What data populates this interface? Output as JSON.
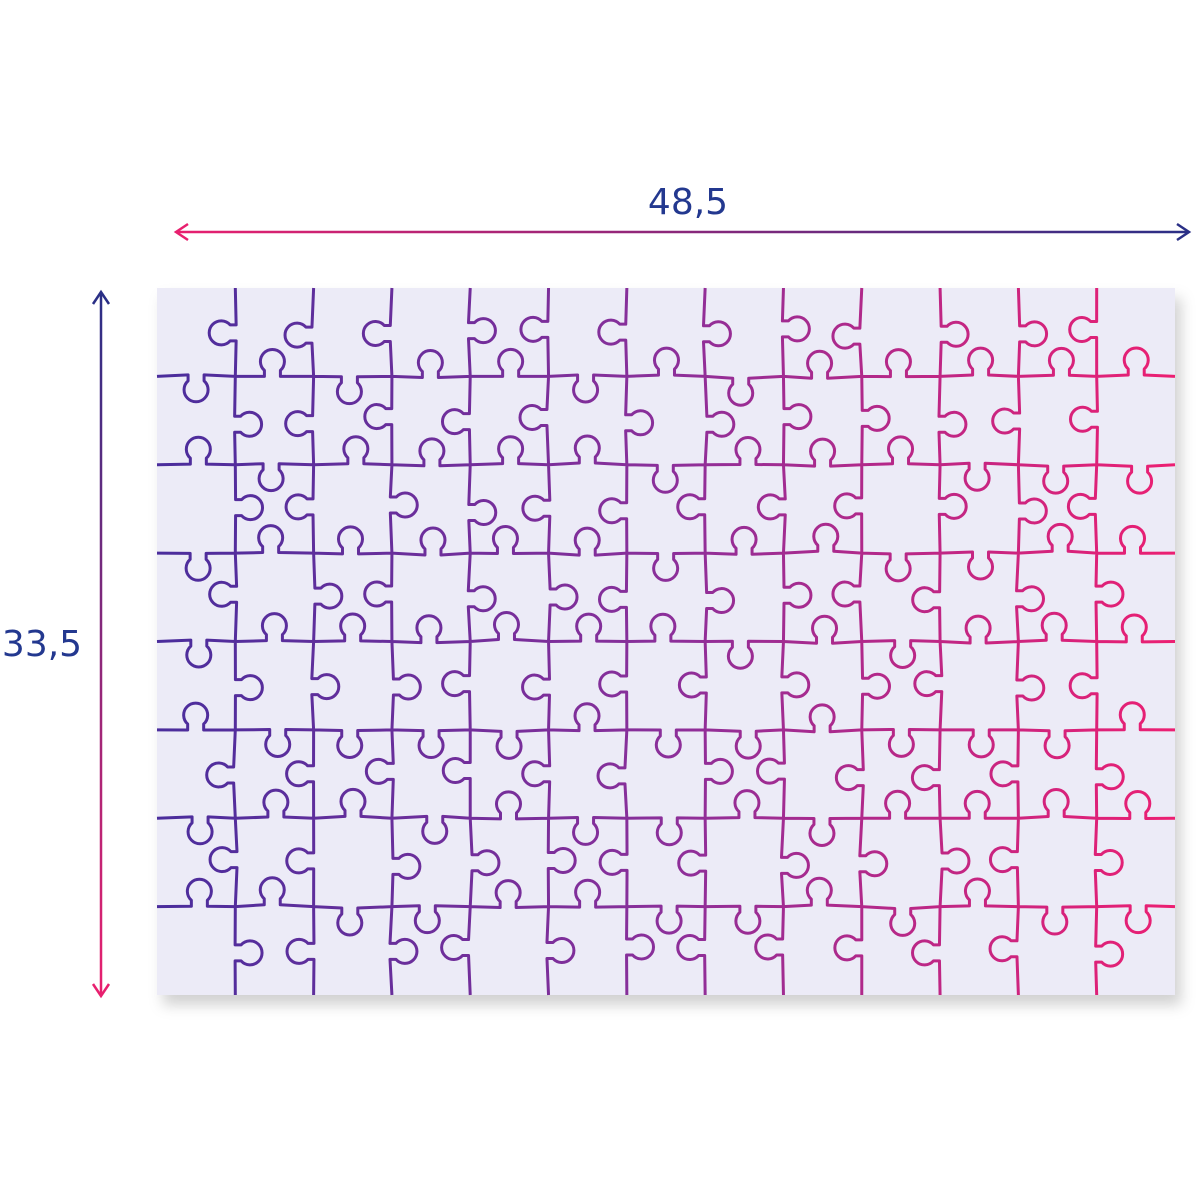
{
  "width_label": "48,5",
  "height_label": "33,5"
}
